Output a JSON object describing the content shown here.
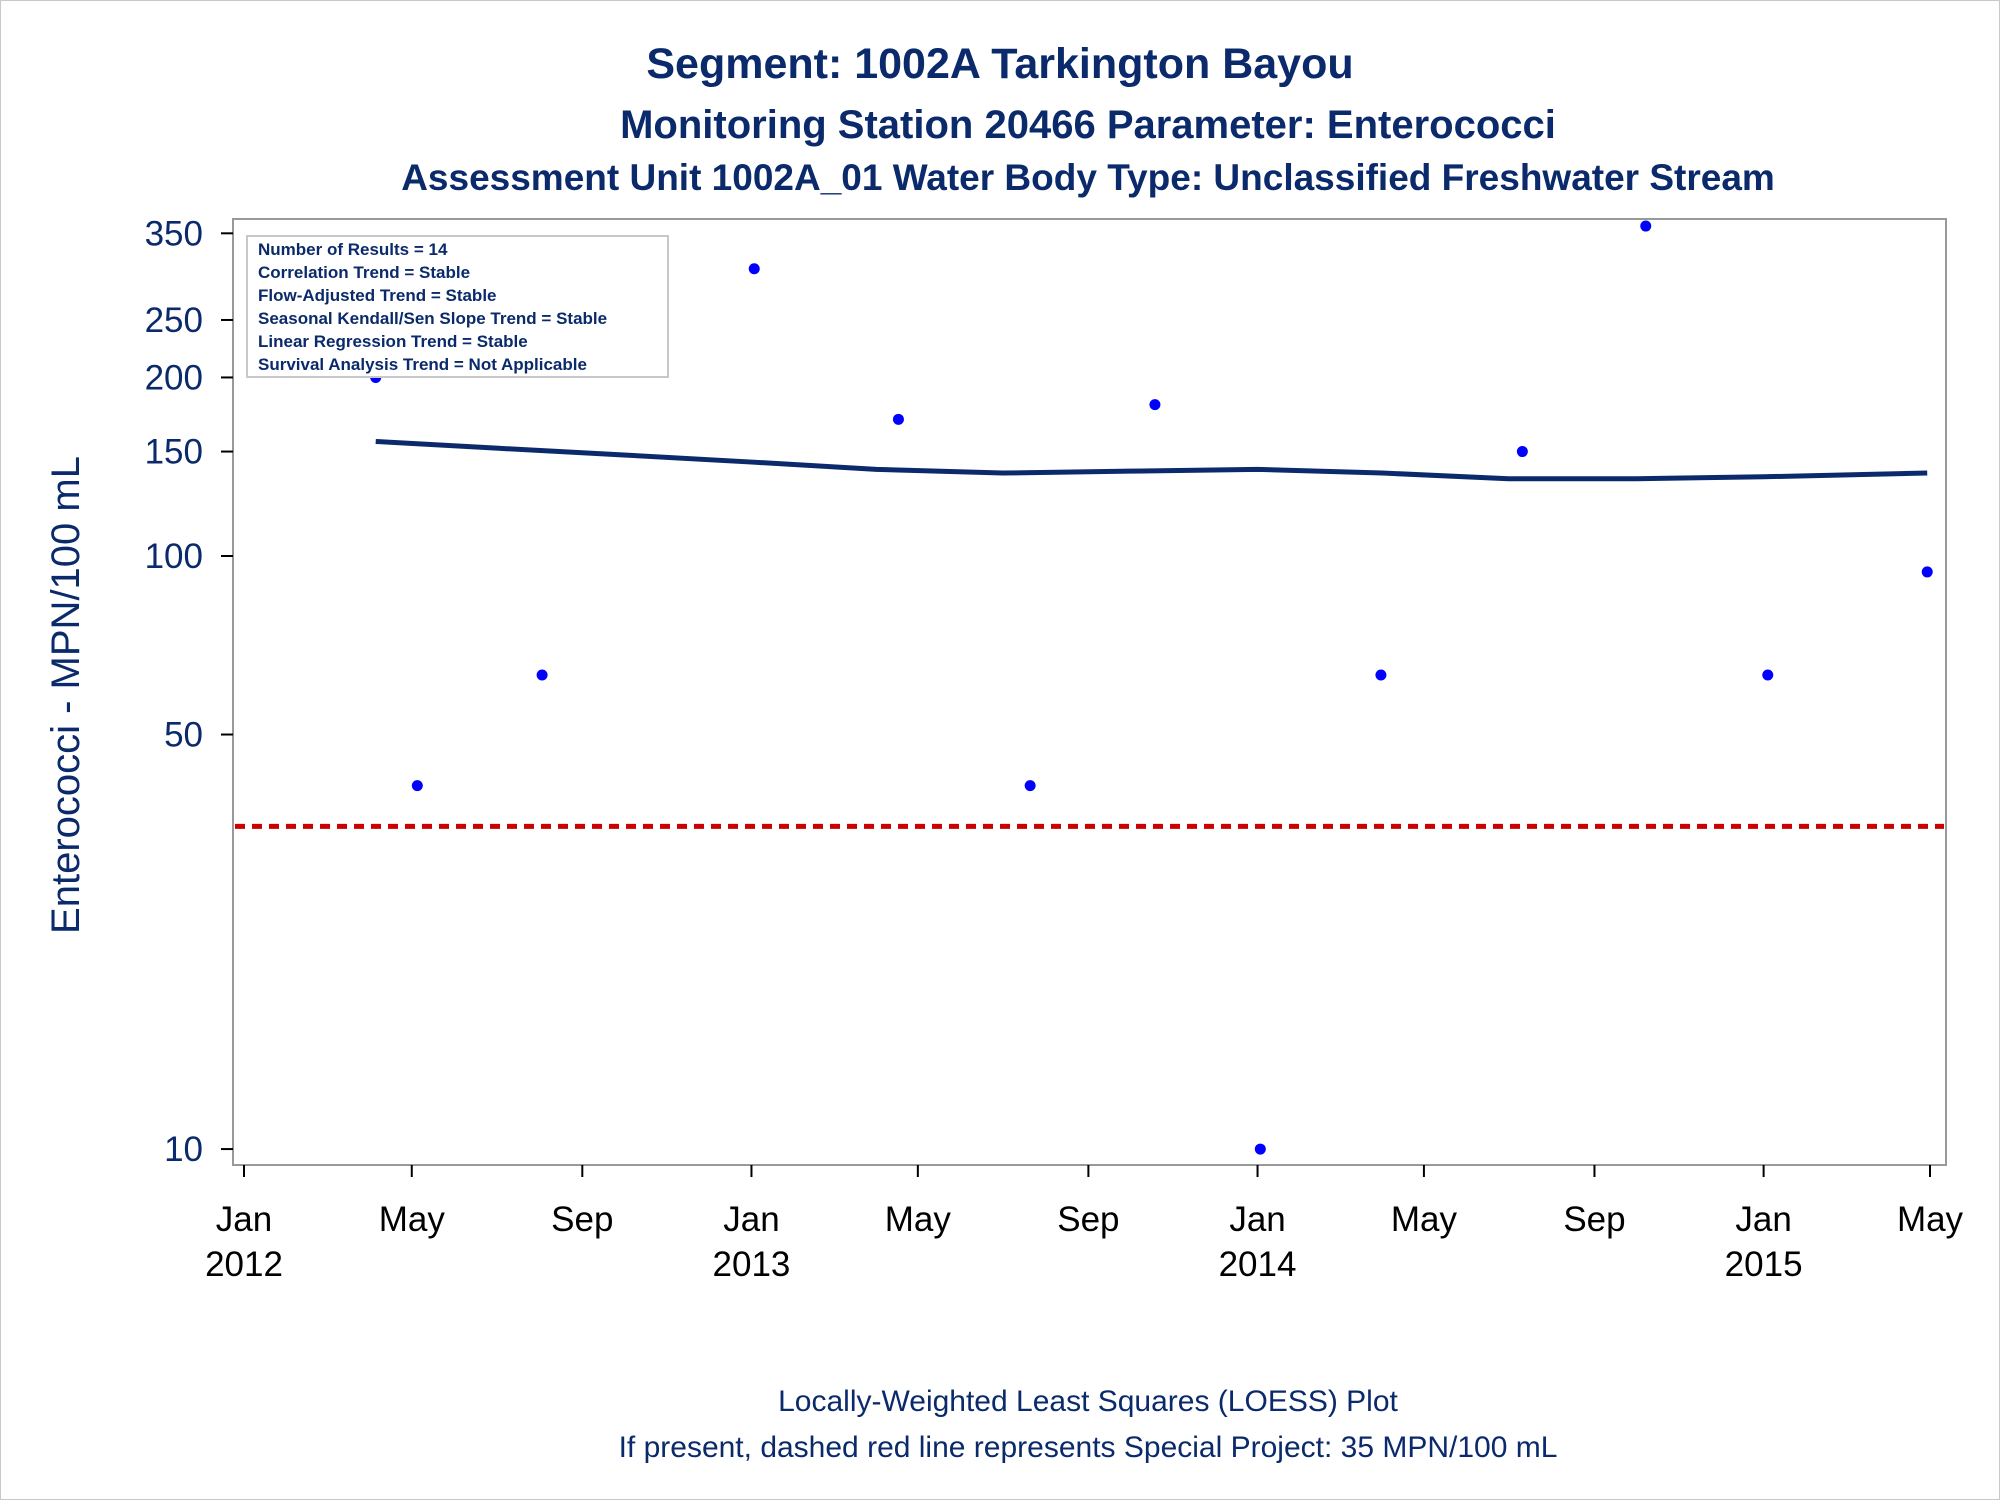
{
  "chart_data": {
    "type": "scatter",
    "title": "Segment: 1002A  Tarkington Bayou",
    "subtitle": "Monitoring Station 20466 Parameter: Enterococci",
    "subtitle2": "Assessment Unit 1002A_01   Water Body Type: Unclassified Freshwater Stream",
    "ylabel": "Enterococci - MPN/100 mL",
    "yscale": "log",
    "ylim": [
      9.4,
      370
    ],
    "xlim": [
      "2012-01-01",
      "2015-05-01"
    ],
    "yticks": [
      10,
      50,
      100,
      150,
      200,
      250,
      350
    ],
    "xticks": [
      {
        "date": "2012-01-01",
        "line1": "Jan",
        "line2": "2012"
      },
      {
        "date": "2012-05-01",
        "line1": "May",
        "line2": ""
      },
      {
        "date": "2012-09-01",
        "line1": "Sep",
        "line2": ""
      },
      {
        "date": "2013-01-01",
        "line1": "Jan",
        "line2": "2013"
      },
      {
        "date": "2013-05-01",
        "line1": "May",
        "line2": ""
      },
      {
        "date": "2013-09-01",
        "line1": "Sep",
        "line2": ""
      },
      {
        "date": "2014-01-01",
        "line1": "Jan",
        "line2": "2014"
      },
      {
        "date": "2014-05-01",
        "line1": "May",
        "line2": ""
      },
      {
        "date": "2014-09-01",
        "line1": "Sep",
        "line2": ""
      },
      {
        "date": "2015-01-01",
        "line1": "Jan",
        "line2": "2015"
      },
      {
        "date": "2015-05-01",
        "line1": "May",
        "line2": ""
      }
    ],
    "points": [
      {
        "x": "2012-04-05",
        "y": 200
      },
      {
        "x": "2012-05-05",
        "y": 41
      },
      {
        "x": "2012-08-03",
        "y": 63
      },
      {
        "x": "2012-10-17",
        "y": 230
      },
      {
        "x": "2013-01-03",
        "y": 305
      },
      {
        "x": "2013-04-17",
        "y": 170
      },
      {
        "x": "2013-07-21",
        "y": 41
      },
      {
        "x": "2013-10-19",
        "y": 180
      },
      {
        "x": "2014-01-03",
        "y": 10
      },
      {
        "x": "2014-03-31",
        "y": 63
      },
      {
        "x": "2014-07-11",
        "y": 150
      },
      {
        "x": "2014-10-08",
        "y": 360
      },
      {
        "x": "2015-01-04",
        "y": 63
      },
      {
        "x": "2015-04-29",
        "y": 94
      }
    ],
    "loess": [
      {
        "x": "2012-04-05",
        "y": 156
      },
      {
        "x": "2012-07-01",
        "y": 152
      },
      {
        "x": "2012-10-01",
        "y": 148
      },
      {
        "x": "2013-01-01",
        "y": 144
      },
      {
        "x": "2013-04-01",
        "y": 140
      },
      {
        "x": "2013-07-01",
        "y": 138
      },
      {
        "x": "2013-10-01",
        "y": 139
      },
      {
        "x": "2014-01-01",
        "y": 140
      },
      {
        "x": "2014-04-01",
        "y": 138
      },
      {
        "x": "2014-07-01",
        "y": 135
      },
      {
        "x": "2014-10-01",
        "y": 135
      },
      {
        "x": "2015-01-01",
        "y": 136
      },
      {
        "x": "2015-04-29",
        "y": 138
      }
    ],
    "reference_line": {
      "y": 35,
      "style": "dashed",
      "color": "#cc0000"
    },
    "grid": false,
    "colors": {
      "points": "#0000ff",
      "loess": "#0b2a6b",
      "text": "#0b2a6b",
      "axis": "#999999"
    }
  },
  "inset": {
    "lines": [
      "Number of Results = 14",
      "Correlation Trend = Stable",
      "Flow-Adjusted Trend = Stable",
      "Seasonal Kendall/Sen Slope Trend = Stable",
      "Linear Regression Trend = Stable",
      "Survival Analysis Trend = Not Applicable"
    ]
  },
  "footnotes": [
    "Locally-Weighted Least Squares (LOESS) Plot",
    "If present, dashed red line represents Special Project: 35 MPN/100 mL"
  ]
}
